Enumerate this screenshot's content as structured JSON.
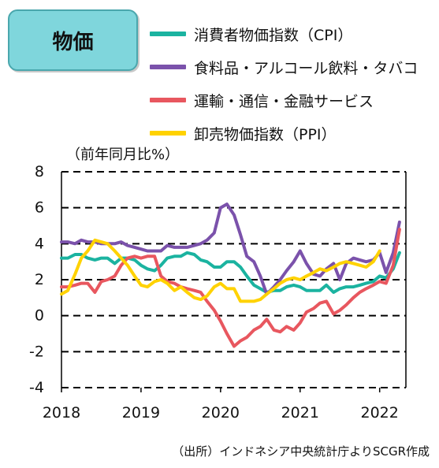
{
  "title": "物価",
  "source_note": "（出所）インドネシア中央統計庁よりSCGR作成",
  "colors": {
    "cpi": "#1bb3a0",
    "food": "#7b52ab",
    "transport": "#e8575f",
    "ppi": "#ffd200",
    "grid": "#000000"
  },
  "chart_data": {
    "type": "line",
    "ylabel": "（前年同月比%）",
    "ylim": [
      -4,
      8
    ],
    "yticks": [
      "8",
      "6",
      "4",
      "2",
      "0",
      "-2",
      "-4"
    ],
    "xlim": [
      2018.0,
      2022.33
    ],
    "xticks": [
      "2018",
      "2019",
      "2020",
      "2021",
      "2022"
    ],
    "grid": "horizontal dashed",
    "legend_position": "top-right",
    "series": [
      {
        "name": "消費者物価指数（CPI）",
        "color": "#1bb3a0",
        "points": [
          [
            2018.0,
            3.2
          ],
          [
            2018.08,
            3.2
          ],
          [
            2018.17,
            3.4
          ],
          [
            2018.25,
            3.4
          ],
          [
            2018.33,
            3.2
          ],
          [
            2018.42,
            3.1
          ],
          [
            2018.5,
            3.2
          ],
          [
            2018.58,
            3.2
          ],
          [
            2018.67,
            2.9
          ],
          [
            2018.75,
            3.2
          ],
          [
            2018.83,
            3.2
          ],
          [
            2018.92,
            3.1
          ],
          [
            2019.0,
            2.8
          ],
          [
            2019.08,
            2.6
          ],
          [
            2019.17,
            2.5
          ],
          [
            2019.25,
            2.8
          ],
          [
            2019.33,
            3.2
          ],
          [
            2019.42,
            3.3
          ],
          [
            2019.5,
            3.3
          ],
          [
            2019.58,
            3.5
          ],
          [
            2019.67,
            3.4
          ],
          [
            2019.75,
            3.1
          ],
          [
            2019.83,
            3.0
          ],
          [
            2019.92,
            2.7
          ],
          [
            2020.0,
            2.7
          ],
          [
            2020.08,
            3.0
          ],
          [
            2020.17,
            3.0
          ],
          [
            2020.25,
            2.7
          ],
          [
            2020.33,
            2.2
          ],
          [
            2020.42,
            1.7
          ],
          [
            2020.5,
            1.5
          ],
          [
            2020.58,
            1.3
          ],
          [
            2020.67,
            1.4
          ],
          [
            2020.75,
            1.4
          ],
          [
            2020.83,
            1.6
          ],
          [
            2020.92,
            1.7
          ],
          [
            2021.0,
            1.6
          ],
          [
            2021.08,
            1.4
          ],
          [
            2021.17,
            1.4
          ],
          [
            2021.25,
            1.4
          ],
          [
            2021.33,
            1.7
          ],
          [
            2021.42,
            1.3
          ],
          [
            2021.5,
            1.5
          ],
          [
            2021.58,
            1.6
          ],
          [
            2021.67,
            1.6
          ],
          [
            2021.75,
            1.7
          ],
          [
            2021.83,
            1.8
          ],
          [
            2021.92,
            1.9
          ],
          [
            2022.0,
            2.2
          ],
          [
            2022.08,
            2.1
          ],
          [
            2022.17,
            2.6
          ],
          [
            2022.25,
            3.5
          ]
        ]
      },
      {
        "name": "食料品・アルコール飲料・タバコ",
        "color": "#7b52ab",
        "points": [
          [
            2018.0,
            4.1
          ],
          [
            2018.08,
            4.1
          ],
          [
            2018.17,
            4.0
          ],
          [
            2018.25,
            4.2
          ],
          [
            2018.33,
            4.1
          ],
          [
            2018.42,
            4.1
          ],
          [
            2018.5,
            4.0
          ],
          [
            2018.58,
            4.0
          ],
          [
            2018.67,
            4.0
          ],
          [
            2018.75,
            4.1
          ],
          [
            2018.83,
            3.9
          ],
          [
            2018.92,
            3.8
          ],
          [
            2019.0,
            3.7
          ],
          [
            2019.08,
            3.6
          ],
          [
            2019.17,
            3.6
          ],
          [
            2019.25,
            3.6
          ],
          [
            2019.33,
            3.9
          ],
          [
            2019.42,
            3.8
          ],
          [
            2019.5,
            3.8
          ],
          [
            2019.58,
            3.8
          ],
          [
            2019.67,
            3.9
          ],
          [
            2019.75,
            4.0
          ],
          [
            2019.83,
            4.2
          ],
          [
            2019.92,
            4.6
          ],
          [
            2020.0,
            6.0
          ],
          [
            2020.08,
            6.2
          ],
          [
            2020.17,
            5.6
          ],
          [
            2020.25,
            4.5
          ],
          [
            2020.33,
            3.3
          ],
          [
            2020.42,
            3.0
          ],
          [
            2020.5,
            2.2
          ],
          [
            2020.58,
            1.2
          ],
          [
            2020.67,
            1.6
          ],
          [
            2020.75,
            2.0
          ],
          [
            2020.83,
            2.5
          ],
          [
            2020.92,
            3.0
          ],
          [
            2021.0,
            3.6
          ],
          [
            2021.08,
            2.9
          ],
          [
            2021.17,
            2.3
          ],
          [
            2021.25,
            2.2
          ],
          [
            2021.33,
            2.6
          ],
          [
            2021.42,
            2.9
          ],
          [
            2021.5,
            2.0
          ],
          [
            2021.58,
            2.9
          ],
          [
            2021.67,
            3.2
          ],
          [
            2021.75,
            3.1
          ],
          [
            2021.83,
            3.0
          ],
          [
            2021.92,
            3.1
          ],
          [
            2022.0,
            3.5
          ],
          [
            2022.08,
            2.4
          ],
          [
            2022.17,
            3.5
          ],
          [
            2022.25,
            5.2
          ]
        ]
      },
      {
        "name": "運輸・通信・金融サービス",
        "color": "#e8575f",
        "points": [
          [
            2018.0,
            1.6
          ],
          [
            2018.08,
            1.6
          ],
          [
            2018.17,
            1.7
          ],
          [
            2018.25,
            1.8
          ],
          [
            2018.33,
            1.8
          ],
          [
            2018.42,
            1.3
          ],
          [
            2018.5,
            1.9
          ],
          [
            2018.58,
            2.0
          ],
          [
            2018.67,
            2.2
          ],
          [
            2018.75,
            2.8
          ],
          [
            2018.83,
            3.2
          ],
          [
            2018.92,
            3.3
          ],
          [
            2019.0,
            3.2
          ],
          [
            2019.08,
            3.3
          ],
          [
            2019.17,
            3.3
          ],
          [
            2019.25,
            2.2
          ],
          [
            2019.33,
            1.9
          ],
          [
            2019.42,
            1.8
          ],
          [
            2019.5,
            1.6
          ],
          [
            2019.58,
            1.5
          ],
          [
            2019.67,
            1.4
          ],
          [
            2019.75,
            1.3
          ],
          [
            2019.83,
            0.8
          ],
          [
            2019.92,
            0.3
          ],
          [
            2020.0,
            -0.3
          ],
          [
            2020.08,
            -1.0
          ],
          [
            2020.17,
            -1.7
          ],
          [
            2020.25,
            -1.4
          ],
          [
            2020.33,
            -1.2
          ],
          [
            2020.42,
            -0.8
          ],
          [
            2020.5,
            -0.6
          ],
          [
            2020.58,
            -0.2
          ],
          [
            2020.67,
            -0.8
          ],
          [
            2020.75,
            -0.9
          ],
          [
            2020.83,
            -0.6
          ],
          [
            2020.92,
            -0.8
          ],
          [
            2021.0,
            -0.4
          ],
          [
            2021.08,
            0.2
          ],
          [
            2021.17,
            0.4
          ],
          [
            2021.25,
            0.7
          ],
          [
            2021.33,
            0.8
          ],
          [
            2021.42,
            0.1
          ],
          [
            2021.5,
            0.3
          ],
          [
            2021.58,
            0.6
          ],
          [
            2021.67,
            1.0
          ],
          [
            2021.75,
            1.3
          ],
          [
            2021.83,
            1.5
          ],
          [
            2021.92,
            1.7
          ],
          [
            2022.0,
            1.9
          ],
          [
            2022.08,
            1.8
          ],
          [
            2022.17,
            2.8
          ],
          [
            2022.25,
            4.8
          ]
        ]
      },
      {
        "name": "卸売物価指数（PPI）",
        "color": "#ffd200",
        "points": [
          [
            2018.0,
            1.2
          ],
          [
            2018.08,
            1.4
          ],
          [
            2018.17,
            2.3
          ],
          [
            2018.25,
            3.2
          ],
          [
            2018.33,
            3.6
          ],
          [
            2018.42,
            4.2
          ],
          [
            2018.5,
            4.1
          ],
          [
            2018.58,
            4.0
          ],
          [
            2018.67,
            3.6
          ],
          [
            2018.75,
            3.2
          ],
          [
            2018.83,
            2.8
          ],
          [
            2018.92,
            2.2
          ],
          [
            2019.0,
            1.7
          ],
          [
            2019.08,
            1.6
          ],
          [
            2019.17,
            1.9
          ],
          [
            2019.25,
            2.0
          ],
          [
            2019.33,
            1.8
          ],
          [
            2019.42,
            1.4
          ],
          [
            2019.5,
            1.6
          ],
          [
            2019.58,
            1.3
          ],
          [
            2019.67,
            1.0
          ],
          [
            2019.75,
            0.9
          ],
          [
            2019.83,
            1.1
          ],
          [
            2019.92,
            1.6
          ],
          [
            2020.0,
            1.8
          ],
          [
            2020.08,
            1.5
          ],
          [
            2020.17,
            1.5
          ],
          [
            2020.25,
            0.8
          ],
          [
            2020.33,
            0.8
          ],
          [
            2020.42,
            0.8
          ],
          [
            2020.5,
            0.9
          ],
          [
            2020.58,
            1.2
          ],
          [
            2020.67,
            1.5
          ],
          [
            2020.75,
            1.8
          ],
          [
            2020.83,
            2.0
          ],
          [
            2020.92,
            2.1
          ],
          [
            2021.0,
            2.0
          ],
          [
            2021.08,
            2.2
          ],
          [
            2021.17,
            2.4
          ],
          [
            2021.25,
            2.6
          ],
          [
            2021.33,
            2.5
          ],
          [
            2021.42,
            2.7
          ],
          [
            2021.5,
            2.9
          ],
          [
            2021.58,
            3.0
          ],
          [
            2021.67,
            2.9
          ],
          [
            2021.75,
            2.8
          ],
          [
            2021.83,
            2.7
          ],
          [
            2021.92,
            3.0
          ],
          [
            2022.0,
            3.6
          ]
        ]
      }
    ]
  }
}
